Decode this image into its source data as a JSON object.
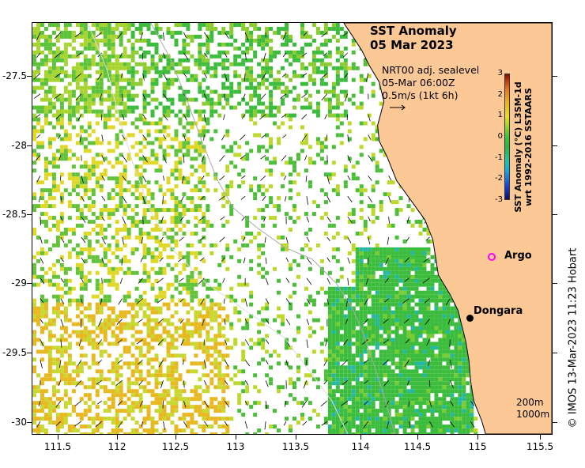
{
  "title": {
    "line1": "SST Anomaly",
    "line2": "05 Mar 2023"
  },
  "vectors": {
    "line1": "NRT00 adj. sealevel",
    "line2": "05-Mar 06:00Z",
    "line3": "0.5m/s (1kt 6h)"
  },
  "colorbar": {
    "label_line1": "SST Anomaly (°C) L3SM-1d",
    "label_line2": "wrt 1992-2016 SSTAARS",
    "ticks": [
      "3",
      "2",
      "1",
      "0",
      "-1",
      "-2",
      "-3"
    ],
    "range": [
      -3,
      3
    ]
  },
  "axes": {
    "y_ticks": [
      "-27.5",
      "-28",
      "-28.5",
      "-29",
      "-29.5",
      "-30"
    ],
    "x_ticks": [
      "111.5",
      "112",
      "112.5",
      "113",
      "113.5",
      "114",
      "114.5",
      "115",
      "115.5"
    ]
  },
  "places": {
    "argo": "Argo",
    "dongara": "Dongara"
  },
  "contours": {
    "shallow": "200m",
    "deep": "1000m"
  },
  "credit": "© IMOS 13-Mar-2023 11:23 Hobart",
  "colors": {
    "land": "#fcc896",
    "argo_marker": "#ff00ff",
    "coast_line": "#000000"
  }
}
